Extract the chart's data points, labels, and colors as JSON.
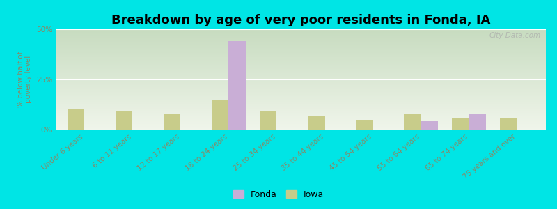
{
  "title": "Breakdown by age of very poor residents in Fonda, IA",
  "ylabel": "% below half of\npoverty level",
  "categories": [
    "Under 6 years",
    "6 to 11 years",
    "12 to 17 years",
    "18 to 24 years",
    "25 to 34 years",
    "35 to 44 years",
    "45 to 54 years",
    "55 to 64 years",
    "65 to 74 years",
    "75 years and over"
  ],
  "fonda_values": [
    0,
    0,
    0,
    44,
    0,
    0,
    0,
    4,
    8,
    0
  ],
  "iowa_values": [
    10,
    9,
    8,
    15,
    9,
    7,
    5,
    8,
    6,
    6
  ],
  "fonda_color": "#c9aed6",
  "iowa_color": "#c8cc8a",
  "background_outer": "#00e5e5",
  "background_plot_top": "#c8dcc0",
  "background_plot_bottom": "#eef5ea",
  "ylim": [
    0,
    50
  ],
  "yticks": [
    0,
    25,
    50
  ],
  "ytick_labels": [
    "0%",
    "25%",
    "50%"
  ],
  "bar_width": 0.35,
  "title_fontsize": 13,
  "label_fontsize": 7.5,
  "tick_color": "#888866",
  "watermark": "City-Data.com",
  "legend_labels": [
    "Fonda",
    "Iowa"
  ]
}
